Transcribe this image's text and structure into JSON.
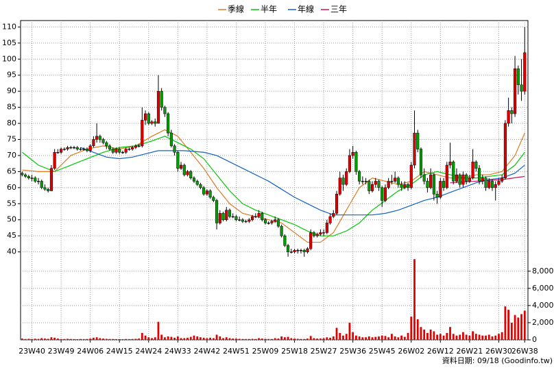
{
  "chart_data": {
    "type": "candlestick",
    "source": "資料日期: 09/18 (Goodinfo.tw)",
    "up_color": "#e00000",
    "down_color": "#00a000",
    "volume_color": "#e00000",
    "xlim": [
      -0.5,
      156
    ],
    "xticks": [
      {
        "value": 3,
        "label": "23W40"
      },
      {
        "value": 12,
        "label": "23W49"
      },
      {
        "value": 21,
        "label": "24W06"
      },
      {
        "value": 30,
        "label": "24W15"
      },
      {
        "value": 39,
        "label": "24W24"
      },
      {
        "value": 48,
        "label": "24W33"
      },
      {
        "value": 57,
        "label": "24W42"
      },
      {
        "value": 66,
        "label": "24W51"
      },
      {
        "value": 75,
        "label": "25W09"
      },
      {
        "value": 84,
        "label": "25W18"
      },
      {
        "value": 93,
        "label": "25W27"
      },
      {
        "value": 102,
        "label": "25W36"
      },
      {
        "value": 111,
        "label": "25W45"
      },
      {
        "value": 120,
        "label": "26W02"
      },
      {
        "value": 129,
        "label": "26W12"
      },
      {
        "value": 138,
        "label": "26W21"
      },
      {
        "value": 147,
        "label": "26W30"
      },
      {
        "value": 155,
        "label": "26W38"
      }
    ],
    "ylim": [
      38,
      112
    ],
    "yticks": [
      40,
      45,
      50,
      55,
      60,
      65,
      70,
      75,
      80,
      85,
      90,
      95,
      100,
      105,
      110
    ],
    "grid": true,
    "candles": [
      [
        64.5,
        65,
        63.5,
        64
      ],
      [
        64,
        64.5,
        63,
        63.5
      ],
      [
        63.5,
        64,
        62.5,
        63
      ],
      [
        63,
        64,
        62,
        63
      ],
      [
        63,
        63.5,
        61.5,
        62
      ],
      [
        62,
        63,
        61,
        62
      ],
      [
        62,
        62.5,
        59.5,
        60
      ],
      [
        60,
        61,
        59,
        59.5
      ],
      [
        59.5,
        60,
        58.5,
        59
      ],
      [
        59,
        67,
        59,
        66
      ],
      [
        66,
        72,
        65.5,
        71
      ],
      [
        71,
        72,
        70.5,
        71
      ],
      [
        71,
        72.5,
        70.5,
        72
      ],
      [
        72,
        72.5,
        71.5,
        72
      ],
      [
        72,
        73,
        71.5,
        72.5
      ],
      [
        72.5,
        73,
        72,
        72.5
      ],
      [
        72.5,
        73,
        72,
        72.5
      ],
      [
        72.5,
        73,
        71.5,
        72
      ],
      [
        72,
        72.5,
        71.5,
        72
      ],
      [
        72,
        72.5,
        71.5,
        72
      ],
      [
        72,
        72.5,
        71,
        71.5
      ],
      [
        71.5,
        73.5,
        71,
        73
      ],
      [
        73,
        76,
        72.5,
        75
      ],
      [
        75,
        80,
        74,
        76
      ],
      [
        76,
        76.5,
        74,
        75
      ],
      [
        75,
        75.5,
        73.5,
        74
      ],
      [
        74,
        74.5,
        72,
        73
      ],
      [
        73,
        73.5,
        71.5,
        72
      ],
      [
        72,
        72.5,
        70.5,
        71
      ],
      [
        71,
        72.5,
        70.5,
        72
      ],
      [
        72,
        72.5,
        70.5,
        71
      ],
      [
        71,
        71.5,
        70.5,
        71
      ],
      [
        71,
        72.5,
        70.5,
        72
      ],
      [
        72,
        72.5,
        71.5,
        72
      ],
      [
        72,
        73,
        71.5,
        72.5
      ],
      [
        72.5,
        73.5,
        72,
        73
      ],
      [
        73,
        73.5,
        72.5,
        73
      ],
      [
        73,
        85,
        72.5,
        81
      ],
      [
        81,
        84,
        79.5,
        83
      ],
      [
        83,
        83.5,
        79.5,
        80
      ],
      [
        80,
        81,
        79.5,
        80.5
      ],
      [
        80.5,
        81.5,
        79,
        80
      ],
      [
        80,
        95,
        80,
        90
      ],
      [
        90,
        91,
        84,
        85
      ],
      [
        85,
        85.5,
        82,
        83
      ],
      [
        83,
        83.5,
        76,
        77
      ],
      [
        77,
        78,
        72.5,
        73
      ],
      [
        73,
        73.5,
        70,
        71
      ],
      [
        71,
        71.5,
        65,
        66
      ],
      [
        66,
        68,
        65.5,
        67
      ],
      [
        67,
        67.5,
        63.5,
        64
      ],
      [
        64,
        65.5,
        63.5,
        65
      ],
      [
        65,
        65.5,
        62.5,
        63
      ],
      [
        63,
        63.5,
        61.5,
        62
      ],
      [
        62,
        62.5,
        60.5,
        61
      ],
      [
        61,
        61.5,
        59.5,
        60
      ],
      [
        60,
        60.5,
        57.5,
        58
      ],
      [
        58,
        59.5,
        57.5,
        59
      ],
      [
        59,
        59.5,
        56.5,
        57
      ],
      [
        57,
        57.5,
        55.5,
        56
      ],
      [
        56,
        56.5,
        47,
        49
      ],
      [
        49,
        53,
        48.5,
        52
      ],
      [
        52,
        52.5,
        49.5,
        50
      ],
      [
        50,
        54,
        49.5,
        53
      ],
      [
        53,
        53.5,
        50.5,
        51
      ],
      [
        51,
        52,
        50.5,
        51
      ],
      [
        51,
        51.5,
        49.5,
        50
      ],
      [
        50,
        51,
        49.5,
        50
      ],
      [
        50,
        50.5,
        49,
        49.5
      ],
      [
        49.5,
        50,
        49,
        49.5
      ],
      [
        49.5,
        50.5,
        49,
        50
      ],
      [
        50,
        51.5,
        49.5,
        51
      ],
      [
        51,
        52,
        50.5,
        51
      ],
      [
        51,
        53,
        50.5,
        52
      ],
      [
        52,
        52.5,
        49.5,
        50
      ],
      [
        50,
        50.5,
        48.5,
        49
      ],
      [
        49,
        49.5,
        48.5,
        49
      ],
      [
        49,
        50,
        48.5,
        49.5
      ],
      [
        49.5,
        51,
        49,
        50
      ],
      [
        50,
        50.5,
        47.5,
        48
      ],
      [
        48,
        48.5,
        44.5,
        45
      ],
      [
        45,
        45.5,
        41.5,
        42
      ],
      [
        42,
        42.5,
        38.5,
        40
      ],
      [
        40,
        41,
        39.5,
        40
      ],
      [
        40,
        41,
        39.5,
        40.5
      ],
      [
        40.5,
        41,
        39.5,
        40.5
      ],
      [
        40.5,
        41,
        39.5,
        40.5
      ],
      [
        40.5,
        41,
        38.5,
        40
      ],
      [
        40,
        41.5,
        39.5,
        41
      ],
      [
        41,
        47,
        40.5,
        46
      ],
      [
        46,
        46.5,
        44.5,
        45
      ],
      [
        45,
        46,
        44.5,
        45.5
      ],
      [
        45.5,
        47,
        45,
        46
      ],
      [
        46,
        47,
        45,
        46
      ],
      [
        46,
        50,
        45.5,
        49
      ],
      [
        49,
        52,
        48.5,
        51
      ],
      [
        51,
        53,
        50.5,
        52
      ],
      [
        52,
        59,
        51.5,
        58
      ],
      [
        58,
        65,
        57.5,
        63
      ],
      [
        63,
        64,
        59,
        61
      ],
      [
        61,
        66,
        60.5,
        65
      ],
      [
        65,
        72,
        64.5,
        70
      ],
      [
        70,
        73,
        69,
        71
      ],
      [
        71,
        71.5,
        64,
        65
      ],
      [
        65,
        65.5,
        61,
        62
      ],
      [
        62,
        63.5,
        61,
        62
      ],
      [
        62,
        63,
        61,
        62
      ],
      [
        62,
        62.5,
        58,
        59
      ],
      [
        59,
        62,
        58.5,
        61
      ],
      [
        61,
        63,
        60,
        62
      ],
      [
        62,
        62.5,
        59,
        60
      ],
      [
        60,
        60.5,
        54,
        56
      ],
      [
        56,
        61,
        55.5,
        60
      ],
      [
        60,
        63,
        59.5,
        62
      ],
      [
        62,
        64,
        61,
        62
      ],
      [
        62,
        65,
        61.5,
        63
      ],
      [
        63,
        63.5,
        60,
        61
      ],
      [
        61,
        62,
        59,
        60
      ],
      [
        60,
        62,
        59.5,
        61
      ],
      [
        61,
        61.5,
        59,
        60
      ],
      [
        60,
        68,
        59.5,
        67
      ],
      [
        67,
        84,
        66,
        77
      ],
      [
        77,
        78,
        71,
        72
      ],
      [
        72,
        72.5,
        63,
        64
      ],
      [
        64,
        66,
        61,
        62
      ],
      [
        62,
        63,
        58.5,
        60
      ],
      [
        60,
        66,
        59.5,
        64
      ],
      [
        64,
        64.5,
        56,
        58
      ],
      [
        58,
        59,
        55,
        57
      ],
      [
        57,
        63,
        56.5,
        62
      ],
      [
        62,
        63,
        59,
        60
      ],
      [
        60,
        68,
        59.5,
        67
      ],
      [
        67,
        74,
        66,
        68
      ],
      [
        68,
        68.5,
        61,
        62
      ],
      [
        62,
        66,
        61.5,
        64
      ],
      [
        64,
        64.5,
        60,
        61
      ],
      [
        61,
        65,
        60,
        64
      ],
      [
        64,
        64.5,
        61,
        62
      ],
      [
        62,
        64,
        61.5,
        63
      ],
      [
        63,
        72,
        62.5,
        68
      ],
      [
        68,
        68.5,
        65,
        66
      ],
      [
        66,
        67,
        61,
        62
      ],
      [
        62,
        64,
        61,
        63
      ],
      [
        63,
        63.5,
        59,
        60
      ],
      [
        60,
        63,
        59.5,
        62
      ],
      [
        62,
        62.5,
        59,
        60
      ],
      [
        60,
        62,
        56,
        61
      ],
      [
        61,
        63,
        60.5,
        62
      ],
      [
        62,
        64,
        61.5,
        63
      ],
      [
        63,
        81,
        62.5,
        80
      ],
      [
        80,
        88,
        79,
        84
      ],
      [
        84,
        85,
        80,
        83
      ],
      [
        83,
        101,
        82,
        97
      ],
      [
        97,
        98,
        89,
        92
      ],
      [
        92,
        100,
        87,
        90
      ],
      [
        90,
        110,
        89,
        102
      ]
    ],
    "series": [
      {
        "name": "季線",
        "color": "#e07820",
        "x": [
          0,
          5,
          10,
          15,
          20,
          25,
          30,
          35,
          40,
          44,
          48,
          52,
          56,
          60,
          64,
          68,
          72,
          76,
          80,
          84,
          88,
          92,
          96,
          100,
          104,
          108,
          112,
          116,
          120,
          124,
          128,
          132,
          136,
          140,
          144,
          148,
          152,
          155
        ],
        "values": [
          65.5,
          65,
          65,
          70,
          72,
          73,
          72,
          73,
          76,
          78,
          76,
          71,
          66,
          60,
          55,
          52,
          51,
          50,
          49,
          46,
          43,
          43,
          46,
          53,
          60,
          63,
          62,
          61,
          62,
          65,
          64,
          63,
          63,
          64,
          64,
          65,
          70,
          77
        ]
      },
      {
        "name": "半年",
        "color": "#00c800",
        "x": [
          0,
          5,
          10,
          15,
          20,
          25,
          30,
          35,
          40,
          44,
          48,
          52,
          56,
          60,
          64,
          68,
          72,
          76,
          80,
          84,
          88,
          92,
          96,
          100,
          104,
          108,
          112,
          116,
          120,
          124,
          128,
          132,
          136,
          140,
          144,
          148,
          152,
          155
        ],
        "values": [
          71,
          67,
          65,
          67,
          69,
          71,
          72.5,
          73,
          74.5,
          76,
          74,
          72,
          69,
          64,
          59,
          55,
          53,
          51.5,
          50,
          48.5,
          46.5,
          45,
          45,
          46.5,
          49,
          53,
          56,
          59,
          61,
          64,
          65,
          64,
          63,
          63,
          63.5,
          64,
          67,
          71
        ]
      },
      {
        "name": "年線",
        "color": "#1060c8",
        "x": [
          18,
          22,
          26,
          30,
          34,
          38,
          42,
          46,
          50,
          56,
          60,
          64,
          68,
          72,
          76,
          80,
          84,
          88,
          92,
          96,
          100,
          104,
          108,
          112,
          116,
          120,
          124,
          128,
          132,
          136,
          140,
          144,
          148,
          152,
          155
        ],
        "values": [
          72.5,
          71,
          69.5,
          69,
          69.5,
          70.5,
          71.5,
          71.5,
          71.5,
          71,
          70,
          68,
          66,
          64,
          62,
          59.5,
          57,
          55,
          53,
          51.5,
          51.5,
          51.5,
          51.5,
          52,
          53,
          54.5,
          56,
          57,
          58.5,
          60,
          61.5,
          62.5,
          63,
          64.5,
          67
        ]
      },
      {
        "name": "三年",
        "color": "#d0104a",
        "x": [
          132,
          140,
          148,
          155
        ],
        "values": [
          61.5,
          62,
          62.5,
          63.5
        ]
      }
    ],
    "volume": {
      "ylim": [
        0,
        9500
      ],
      "yticks": [
        0,
        {
          "value": 2000,
          "label": "2,000"
        },
        {
          "value": 4000,
          "label": "4,000"
        },
        {
          "value": 6000,
          "label": "6,000"
        },
        {
          "value": 8000,
          "label": "8,000"
        }
      ],
      "values": [
        150,
        100,
        120,
        100,
        130,
        110,
        200,
        150,
        120,
        300,
        250,
        150,
        100,
        100,
        120,
        100,
        90,
        80,
        100,
        90,
        100,
        150,
        250,
        300,
        200,
        150,
        120,
        100,
        100,
        90,
        90,
        80,
        100,
        90,
        100,
        120,
        150,
        800,
        500,
        300,
        200,
        300,
        2100,
        600,
        300,
        400,
        350,
        250,
        400,
        200,
        200,
        250,
        350,
        500,
        400,
        300,
        250,
        200,
        250,
        200,
        600,
        400,
        200,
        300,
        200,
        150,
        150,
        120,
        100,
        100,
        100,
        120,
        100,
        200,
        150,
        120,
        100,
        100,
        200,
        150,
        400,
        300,
        350,
        200,
        150,
        120,
        100,
        100,
        150,
        450,
        200,
        150,
        150,
        200,
        300,
        250,
        400,
        1400,
        800,
        500,
        700,
        2000,
        900,
        500,
        400,
        300,
        300,
        400,
        300,
        350,
        400,
        500,
        450,
        300,
        700,
        400,
        300,
        500,
        350,
        800,
        2700,
        9400,
        2400,
        1500,
        1200,
        800,
        1200,
        1000,
        600,
        700,
        500,
        800,
        1500,
        700,
        500,
        600,
        900,
        600,
        500,
        1000,
        700,
        600,
        500,
        500,
        600,
        400,
        500,
        700,
        900,
        3900,
        3500,
        2000,
        2900,
        2600,
        3000,
        3400
      ]
    }
  }
}
